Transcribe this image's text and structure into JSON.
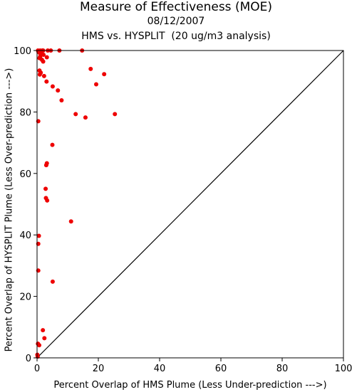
{
  "chart_data": {
    "type": "scatter",
    "title": "Measure of Effectiveness (MOE)",
    "subtitle": "08/12/2007",
    "subtitle2": "HMS vs. HYSPLIT  (20 ug/m3 analysis)",
    "xlabel": "Percent Overlap of HMS Plume (Less Under-prediction --->)",
    "ylabel": "Percent Overlap of HYSPLIT Plume (Less Over-prediction --->)",
    "xlim": [
      0,
      100
    ],
    "ylim": [
      0,
      100
    ],
    "xticks": [
      0,
      20,
      40,
      60,
      80,
      100
    ],
    "yticks": [
      0,
      20,
      40,
      60,
      80,
      100
    ],
    "grid": false,
    "point_color": "#ee0000",
    "reference_line": {
      "from": [
        0,
        0
      ],
      "to": [
        100,
        100
      ]
    },
    "points": [
      [
        0.3,
        100
      ],
      [
        1.0,
        100
      ],
      [
        1.7,
        100
      ],
      [
        2.0,
        100
      ],
      [
        3.5,
        100
      ],
      [
        4.5,
        100
      ],
      [
        7.3,
        100
      ],
      [
        14.7,
        100
      ],
      [
        0.5,
        99.5
      ],
      [
        0.9,
        99.2
      ],
      [
        1.4,
        99.0
      ],
      [
        2.1,
        98.6
      ],
      [
        1.0,
        98.0
      ],
      [
        3.2,
        97.8
      ],
      [
        0.8,
        97.5
      ],
      [
        1.6,
        97.0
      ],
      [
        2.0,
        96.4
      ],
      [
        0.8,
        93.5
      ],
      [
        1.2,
        92.8
      ],
      [
        0.9,
        92.2
      ],
      [
        2.3,
        91.7
      ],
      [
        17.5,
        94.0
      ],
      [
        21.9,
        92.3
      ],
      [
        19.3,
        89.0
      ],
      [
        3.1,
        89.9
      ],
      [
        5.1,
        88.3
      ],
      [
        6.8,
        87.0
      ],
      [
        8.0,
        83.8
      ],
      [
        12.6,
        79.3
      ],
      [
        15.8,
        78.2
      ],
      [
        25.4,
        79.3
      ],
      [
        0.4,
        77.0
      ],
      [
        5.0,
        69.3
      ],
      [
        3.2,
        63.3
      ],
      [
        3.0,
        62.7
      ],
      [
        2.8,
        55.0
      ],
      [
        2.9,
        52.0
      ],
      [
        3.3,
        51.2
      ],
      [
        11.1,
        44.4
      ],
      [
        0.6,
        39.7
      ],
      [
        0.4,
        37.1
      ],
      [
        0.4,
        28.4
      ],
      [
        5.1,
        24.8
      ],
      [
        1.9,
        9.0
      ],
      [
        2.4,
        6.4
      ],
      [
        0.3,
        4.6
      ],
      [
        0.7,
        4.1
      ],
      [
        0.1,
        1.0
      ],
      [
        0.2,
        0.4
      ]
    ]
  }
}
